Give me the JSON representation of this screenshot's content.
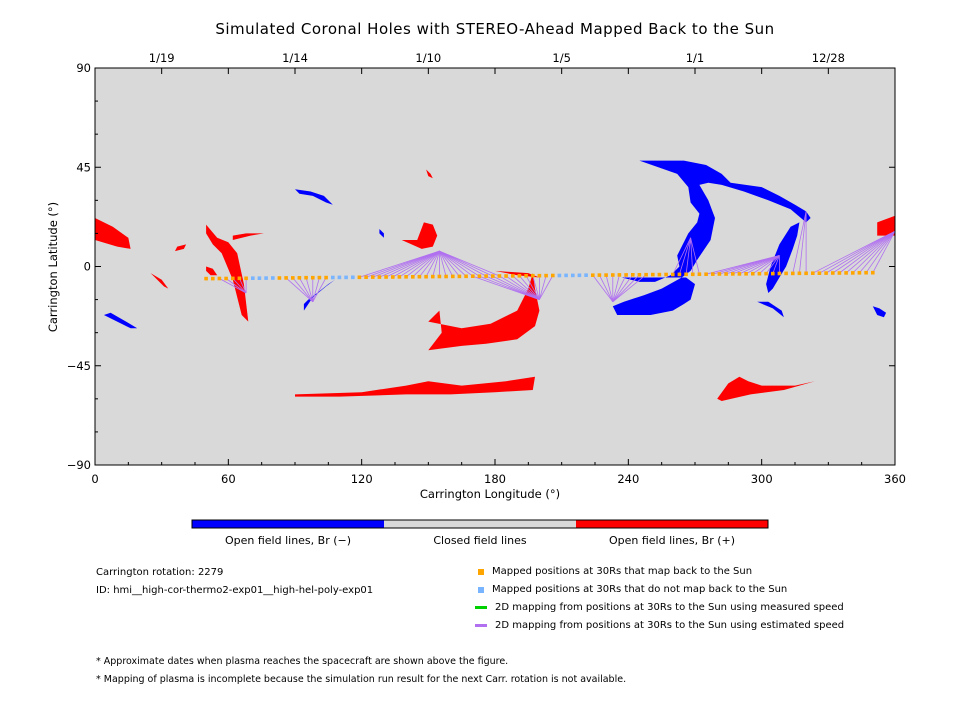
{
  "chart_data": {
    "type": "scatter",
    "title": "Simulated Coronal Holes with STEREO-Ahead Mapped Back to the Sun",
    "xlabel": "Carrington Longitude (°)",
    "ylabel": "Carrington Latitude (°)",
    "xlim": [
      0,
      360
    ],
    "ylim": [
      -90,
      90
    ],
    "x_ticks": [
      "0",
      "60",
      "120",
      "180",
      "240",
      "300",
      "360"
    ],
    "y_ticks": [
      "90",
      "45",
      "0",
      "−45",
      "−90"
    ],
    "top_axis": {
      "ticks": [
        {
          "label": "1/19",
          "lon": 30
        },
        {
          "label": "1/14",
          "lon": 90
        },
        {
          "label": "1/10",
          "lon": 150
        },
        {
          "label": "1/5",
          "lon": 210
        },
        {
          "label": "1/1",
          "lon": 270
        },
        {
          "label": "12/28",
          "lon": 330
        }
      ]
    },
    "grid": false,
    "colors": {
      "background": "#d9d9d9",
      "negative": "#0000ff",
      "positive": "#ff0000",
      "mapped": "#ffa500",
      "unmapped": "#78b4ff",
      "measured": "#00d000",
      "estimated": "#b070f0"
    },
    "regions": [
      {
        "polarity": "positive",
        "points": [
          [
            0,
            22
          ],
          [
            8,
            18
          ],
          [
            15,
            13
          ],
          [
            16,
            8
          ],
          [
            10,
            9
          ],
          [
            0,
            12
          ]
        ]
      },
      {
        "polarity": "positive",
        "points": [
          [
            25,
            -3
          ],
          [
            30,
            -6
          ],
          [
            33,
            -10
          ],
          [
            31,
            -9
          ],
          [
            27,
            -5
          ]
        ]
      },
      {
        "polarity": "positive",
        "points": [
          [
            36,
            7
          ],
          [
            40,
            8
          ],
          [
            41,
            10
          ],
          [
            37,
            9
          ]
        ]
      },
      {
        "polarity": "positive",
        "points": [
          [
            50,
            0
          ],
          [
            53,
            -1
          ],
          [
            55,
            -4
          ],
          [
            52,
            -4
          ],
          [
            50,
            -2
          ]
        ]
      },
      {
        "polarity": "positive",
        "points": [
          [
            50,
            19
          ],
          [
            55,
            13
          ],
          [
            60,
            11
          ],
          [
            64,
            6
          ],
          [
            67,
            -8
          ],
          [
            69,
            -25
          ],
          [
            66,
            -22
          ],
          [
            62,
            -6
          ],
          [
            57,
            6
          ],
          [
            53,
            10
          ],
          [
            50,
            15
          ]
        ]
      },
      {
        "polarity": "positive",
        "points": [
          [
            62,
            12
          ],
          [
            70,
            14
          ],
          [
            76,
            15
          ],
          [
            68,
            15
          ],
          [
            62,
            14
          ]
        ]
      },
      {
        "polarity": "positive",
        "points": [
          [
            138,
            12
          ],
          [
            147,
            8
          ],
          [
            152,
            9
          ],
          [
            154,
            14
          ],
          [
            152,
            19
          ],
          [
            148,
            20
          ],
          [
            145,
            12
          ]
        ]
      },
      {
        "polarity": "positive",
        "points": [
          [
            149,
            44
          ],
          [
            151,
            42
          ],
          [
            152,
            40
          ],
          [
            150,
            41
          ]
        ]
      },
      {
        "polarity": "positive",
        "points": [
          [
            150,
            -25
          ],
          [
            165,
            -28
          ],
          [
            178,
            -26
          ],
          [
            190,
            -20
          ],
          [
            195,
            -10
          ],
          [
            197,
            -3
          ],
          [
            198,
            -10
          ],
          [
            200,
            -20
          ],
          [
            198,
            -27
          ],
          [
            190,
            -33
          ],
          [
            176,
            -35
          ],
          [
            165,
            -36
          ],
          [
            150,
            -38
          ],
          [
            156,
            -30
          ],
          [
            155,
            -20
          ]
        ]
      },
      {
        "polarity": "positive",
        "points": [
          [
            180,
            -2
          ],
          [
            190,
            -4
          ],
          [
            200,
            -5
          ],
          [
            195,
            -3
          ]
        ]
      },
      {
        "polarity": "positive",
        "points": [
          [
            90,
            -58
          ],
          [
            120,
            -57
          ],
          [
            140,
            -54
          ],
          [
            150,
            -52
          ],
          [
            165,
            -54
          ],
          [
            185,
            -52
          ],
          [
            198,
            -50
          ],
          [
            197,
            -56
          ],
          [
            180,
            -57
          ],
          [
            160,
            -58
          ],
          [
            140,
            -58
          ],
          [
            110,
            -59
          ],
          [
            90,
            -59
          ]
        ]
      },
      {
        "polarity": "positive",
        "points": [
          [
            280,
            -60
          ],
          [
            285,
            -53
          ],
          [
            290,
            -50
          ],
          [
            294,
            -52
          ],
          [
            300,
            -54
          ],
          [
            315,
            -54
          ],
          [
            324,
            -52
          ],
          [
            310,
            -56
          ],
          [
            295,
            -58
          ],
          [
            282,
            -61
          ]
        ]
      },
      {
        "polarity": "positive",
        "points": [
          [
            352,
            20
          ],
          [
            360,
            23
          ],
          [
            360,
            14
          ],
          [
            352,
            14
          ]
        ]
      },
      {
        "polarity": "negative",
        "points": [
          [
            4,
            -22
          ],
          [
            10,
            -25
          ],
          [
            16,
            -28
          ],
          [
            19,
            -28
          ],
          [
            14,
            -25
          ],
          [
            7,
            -21
          ]
        ]
      },
      {
        "polarity": "negative",
        "points": [
          [
            90,
            35
          ],
          [
            97,
            34
          ],
          [
            103,
            32
          ],
          [
            107,
            28
          ],
          [
            104,
            29
          ],
          [
            98,
            32
          ],
          [
            92,
            33
          ]
        ]
      },
      {
        "polarity": "negative",
        "points": [
          [
            128,
            17
          ],
          [
            130,
            15
          ],
          [
            130,
            13
          ],
          [
            128,
            15
          ]
        ]
      },
      {
        "polarity": "negative",
        "points": [
          [
            94,
            -17
          ],
          [
            96,
            -15
          ],
          [
            100,
            -12
          ],
          [
            105,
            -8
          ],
          [
            108,
            -6
          ],
          [
            104,
            -9
          ],
          [
            98,
            -14
          ],
          [
            94,
            -20
          ]
        ]
      },
      {
        "polarity": "negative",
        "points": [
          [
            237,
            -5
          ],
          [
            245,
            -7
          ],
          [
            252,
            -7
          ],
          [
            259,
            -4
          ],
          [
            263,
            0
          ],
          [
            262,
            5
          ],
          [
            267,
            15
          ],
          [
            271,
            20
          ],
          [
            272,
            24
          ],
          [
            268,
            29
          ],
          [
            267,
            36
          ],
          [
            262,
            42
          ],
          [
            245,
            48
          ],
          [
            265,
            48
          ],
          [
            275,
            46
          ],
          [
            282,
            42
          ],
          [
            286,
            38
          ],
          [
            300,
            36
          ],
          [
            308,
            32
          ],
          [
            315,
            28
          ],
          [
            320,
            25
          ],
          [
            322,
            22
          ],
          [
            320,
            20
          ],
          [
            313,
            26
          ],
          [
            303,
            30
          ],
          [
            292,
            34
          ],
          [
            282,
            37
          ],
          [
            276,
            38
          ],
          [
            272,
            37
          ],
          [
            276,
            30
          ],
          [
            279,
            22
          ],
          [
            277,
            12
          ],
          [
            271,
            3
          ],
          [
            268,
            -2
          ],
          [
            264,
            -5
          ],
          [
            255,
            -10
          ],
          [
            247,
            -13
          ],
          [
            238,
            -16
          ],
          [
            233,
            -18
          ],
          [
            235,
            -22
          ],
          [
            242,
            -22
          ],
          [
            250,
            -22
          ],
          [
            260,
            -20
          ],
          [
            265,
            -17
          ],
          [
            268,
            -15
          ],
          [
            270,
            -8
          ],
          [
            266,
            -5
          ]
        ]
      },
      {
        "polarity": "negative",
        "points": [
          [
            305,
            -10
          ],
          [
            308,
            -5
          ],
          [
            311,
            0
          ],
          [
            314,
            8
          ],
          [
            316,
            14
          ],
          [
            317,
            20
          ],
          [
            313,
            18
          ],
          [
            308,
            10
          ],
          [
            304,
            0
          ],
          [
            302,
            -8
          ],
          [
            303,
            -12
          ]
        ]
      },
      {
        "polarity": "negative",
        "points": [
          [
            298,
            -16
          ],
          [
            305,
            -19
          ],
          [
            310,
            -23
          ],
          [
            309,
            -20
          ],
          [
            303,
            -16
          ]
        ]
      },
      {
        "polarity": "negative",
        "points": [
          [
            350,
            -18
          ],
          [
            353,
            -19
          ],
          [
            356,
            -21
          ],
          [
            355,
            -23
          ],
          [
            352,
            -22
          ]
        ]
      }
    ],
    "positions_lon": [
      50,
      350,
      3
    ],
    "positions_lat_start": -5.5,
    "positions_lat_end": -2.8,
    "unmapped_ranges": [
      [
        70,
        80
      ],
      [
        106,
        118
      ],
      [
        207,
        222
      ]
    ],
    "fan_groups": [
      {
        "target": [
          68,
          -12
        ],
        "from": [
          55,
          80
        ]
      },
      {
        "target": [
          98,
          -16
        ],
        "from": [
          84,
          110
        ]
      },
      {
        "target": [
          155,
          7
        ],
        "from": [
          116,
          182
        ]
      },
      {
        "target": [
          200,
          -15
        ],
        "from": [
          170,
          210
        ]
      },
      {
        "target": [
          233,
          -16
        ],
        "from": [
          212,
          248
        ]
      },
      {
        "target": [
          268,
          13
        ],
        "from": [
          258,
          272
        ]
      },
      {
        "target": [
          308,
          5
        ],
        "from": [
          275,
          310
        ]
      },
      {
        "target": [
          320,
          25
        ],
        "from": [
          312,
          322
        ]
      },
      {
        "target": [
          360,
          16
        ],
        "from": [
          322,
          360
        ]
      }
    ]
  },
  "colorbar": {
    "labels": [
      "Open field lines, Br (−)",
      "Closed field lines",
      "Open field lines, Br (+)"
    ],
    "colors": [
      "#0000ff",
      "#d9d9d9",
      "#ff0000"
    ]
  },
  "info": {
    "rotation": "Carrington rotation: 2279",
    "id": "ID: hmi__high-cor-thermo2-exp01__high-hel-poly-exp01"
  },
  "legend": [
    {
      "label": "Mapped positions at 30Rs that map back to the Sun",
      "kind": "square",
      "color": "#ffa500"
    },
    {
      "label": "Mapped positions at 30Rs that do not map back to the Sun",
      "kind": "square",
      "color": "#78b4ff"
    },
    {
      "label": "2D mapping from positions at 30Rs to the Sun using measured speed",
      "kind": "line",
      "color": "#00d000"
    },
    {
      "label": "2D mapping from positions at 30Rs to the Sun using estimated speed",
      "kind": "line",
      "color": "#b070f0"
    }
  ],
  "notes": [
    "* Approximate dates when plasma reaches the spacecraft are shown above the figure.",
    "* Mapping of plasma is incomplete because the simulation run result for the next Carr. rotation is not available."
  ]
}
